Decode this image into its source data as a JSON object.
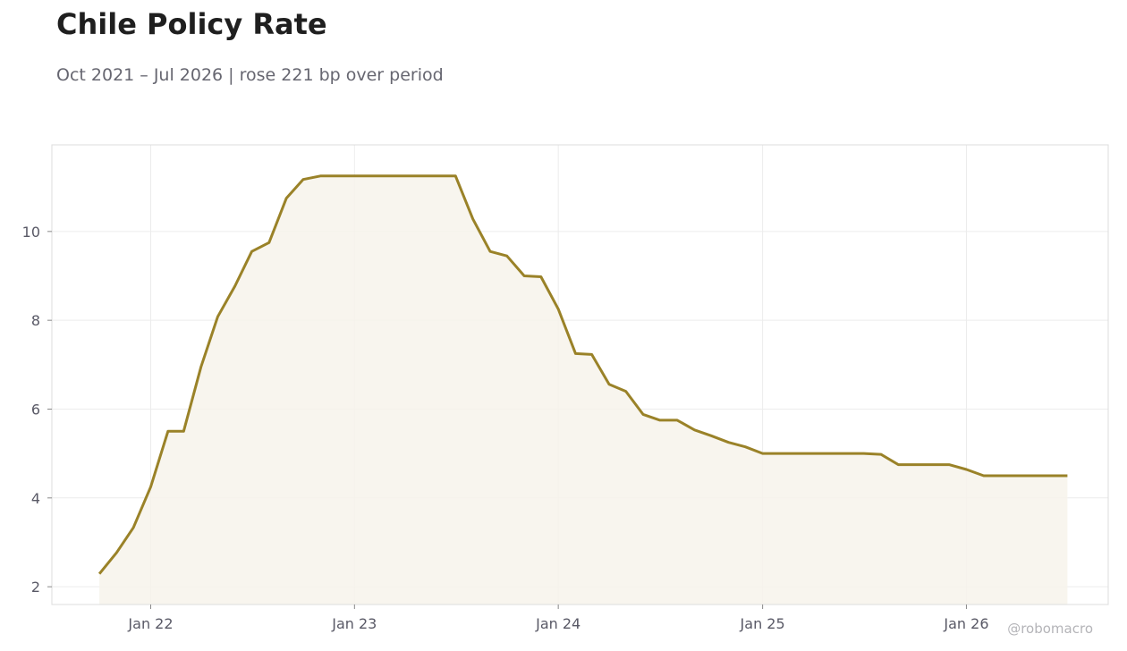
{
  "title": "Chile Policy Rate",
  "subtitle": "Oct 2021 – Jul 2026 | rose 221 bp over period",
  "credit": "@robomacro",
  "colors": {
    "line": "#9a8228",
    "fill": "#f7f3eb",
    "grid": "#ececec",
    "frame": "#dddddd"
  },
  "chart_data": {
    "type": "area",
    "title": "Chile Policy Rate",
    "subtitle": "Oct 2021 – Jul 2026 | rose 221 bp over period",
    "xlabel": "",
    "ylabel": "",
    "grid": true,
    "legend": "none",
    "ylim": [
      1.6,
      11.95
    ],
    "xlim": [
      "2021-07-08",
      "2026-09-12"
    ],
    "x_ticks": [
      {
        "date": "2022-01-01",
        "label": "Jan 22"
      },
      {
        "date": "2023-01-01",
        "label": "Jan 23"
      },
      {
        "date": "2024-01-01",
        "label": "Jan 24"
      },
      {
        "date": "2025-01-01",
        "label": "Jan 25"
      },
      {
        "date": "2026-01-01",
        "label": "Jan 26"
      }
    ],
    "y_ticks": [
      2,
      4,
      6,
      8,
      10
    ],
    "series": [
      {
        "x": [
          "2021-10-01",
          "2021-11-01",
          "2021-12-01",
          "2022-01-01",
          "2022-02-01",
          "2022-03-01",
          "2022-04-01",
          "2022-05-01",
          "2022-06-01",
          "2022-07-01",
          "2022-08-01",
          "2022-09-01",
          "2022-10-01",
          "2022-11-01",
          "2022-12-01",
          "2023-01-01",
          "2023-02-01",
          "2023-03-01",
          "2023-04-01",
          "2023-05-01",
          "2023-06-01",
          "2023-07-01",
          "2023-08-01",
          "2023-09-01",
          "2023-10-01",
          "2023-11-01",
          "2023-12-01",
          "2024-01-01",
          "2024-02-01",
          "2024-03-01",
          "2024-04-01",
          "2024-05-01",
          "2024-06-01",
          "2024-07-01",
          "2024-08-01",
          "2024-09-01",
          "2024-10-01",
          "2024-11-01",
          "2024-12-01",
          "2025-01-01",
          "2025-02-01",
          "2025-03-01",
          "2025-04-01",
          "2025-05-01",
          "2025-06-01",
          "2025-07-01",
          "2025-08-01",
          "2025-09-01",
          "2025-10-01",
          "2025-11-01",
          "2025-12-01",
          "2026-01-01",
          "2026-02-01",
          "2026-03-01",
          "2026-04-01",
          "2026-05-01",
          "2026-06-01",
          "2026-07-01"
        ],
        "values": [
          2.29,
          2.77,
          3.33,
          4.25,
          5.5,
          5.5,
          6.95,
          8.08,
          8.77,
          9.55,
          9.75,
          10.75,
          11.17,
          11.25,
          11.25,
          11.25,
          11.25,
          11.25,
          11.25,
          11.25,
          11.25,
          11.25,
          10.28,
          9.55,
          9.45,
          9.0,
          8.98,
          8.25,
          7.25,
          7.23,
          6.56,
          6.4,
          5.88,
          5.75,
          5.75,
          5.53,
          5.4,
          5.25,
          5.15,
          5.0,
          5.0,
          5.0,
          5.0,
          5.0,
          5.0,
          5.0,
          4.98,
          4.75,
          4.75,
          4.75,
          4.75,
          4.64,
          4.5,
          4.5,
          4.5,
          4.5,
          4.5,
          4.5
        ]
      }
    ]
  }
}
